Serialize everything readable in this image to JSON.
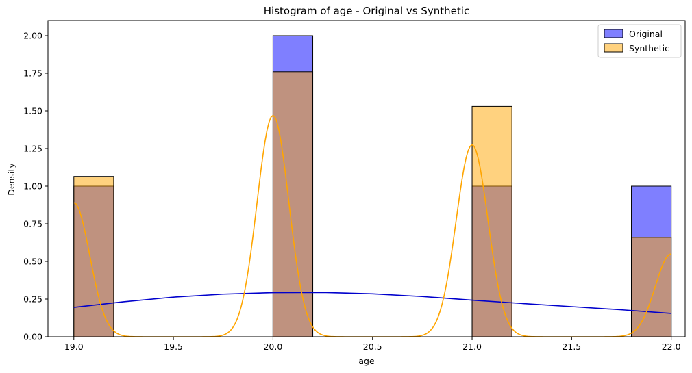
{
  "chart_data": {
    "type": "histogram",
    "title": "Histogram of age - Original vs Synthetic",
    "xlabel": "age",
    "ylabel": "Density",
    "xlim": [
      18.87,
      22.07
    ],
    "ylim": [
      0,
      2.1
    ],
    "x_ticks": [
      "19.0",
      "19.5",
      "20.0",
      "20.5",
      "21.0",
      "21.5",
      "22.0"
    ],
    "y_ticks": [
      "0.00",
      "0.25",
      "0.50",
      "0.75",
      "1.00",
      "1.25",
      "1.50",
      "1.75",
      "2.00"
    ],
    "bin_edges": [
      19.0,
      19.2,
      20.0,
      20.2,
      21.0,
      21.2,
      21.8,
      22.0
    ],
    "grid": false,
    "legend_position": "top-right",
    "series": [
      {
        "name": "Original",
        "color": "#0000ff",
        "fill_alpha": 0.5,
        "bins": [
          {
            "x0": 19.0,
            "x1": 19.2,
            "density": 1.0
          },
          {
            "x0": 20.0,
            "x1": 20.2,
            "density": 2.0
          },
          {
            "x0": 21.0,
            "x1": 21.2,
            "density": 1.0
          },
          {
            "x0": 21.8,
            "x1": 22.0,
            "density": 1.0
          }
        ],
        "kde_color": "#0000cc",
        "kde": [
          [
            19.0,
            0.195
          ],
          [
            19.25,
            0.232
          ],
          [
            19.5,
            0.263
          ],
          [
            19.75,
            0.283
          ],
          [
            20.0,
            0.293
          ],
          [
            20.25,
            0.294
          ],
          [
            20.5,
            0.285
          ],
          [
            20.75,
            0.267
          ],
          [
            21.0,
            0.243
          ],
          [
            21.25,
            0.221
          ],
          [
            21.5,
            0.2
          ],
          [
            21.75,
            0.179
          ],
          [
            22.0,
            0.155
          ]
        ]
      },
      {
        "name": "Synthetic",
        "color": "#ffa500",
        "fill_alpha": 0.5,
        "bins": [
          {
            "x0": 19.0,
            "x1": 19.2,
            "density": 1.065
          },
          {
            "x0": 20.0,
            "x1": 20.2,
            "density": 1.76
          },
          {
            "x0": 21.0,
            "x1": 21.2,
            "density": 1.53
          },
          {
            "x0": 21.8,
            "x1": 22.0,
            "density": 0.66
          }
        ],
        "kde_color": "#ffa500",
        "kde_components": [
          {
            "mu": 19.0,
            "amp": 0.89
          },
          {
            "mu": 20.0,
            "amp": 1.47
          },
          {
            "mu": 21.0,
            "amp": 1.275
          },
          {
            "mu": 22.0,
            "amp": 0.55
          }
        ],
        "kde_sigma": 0.08
      }
    ]
  }
}
